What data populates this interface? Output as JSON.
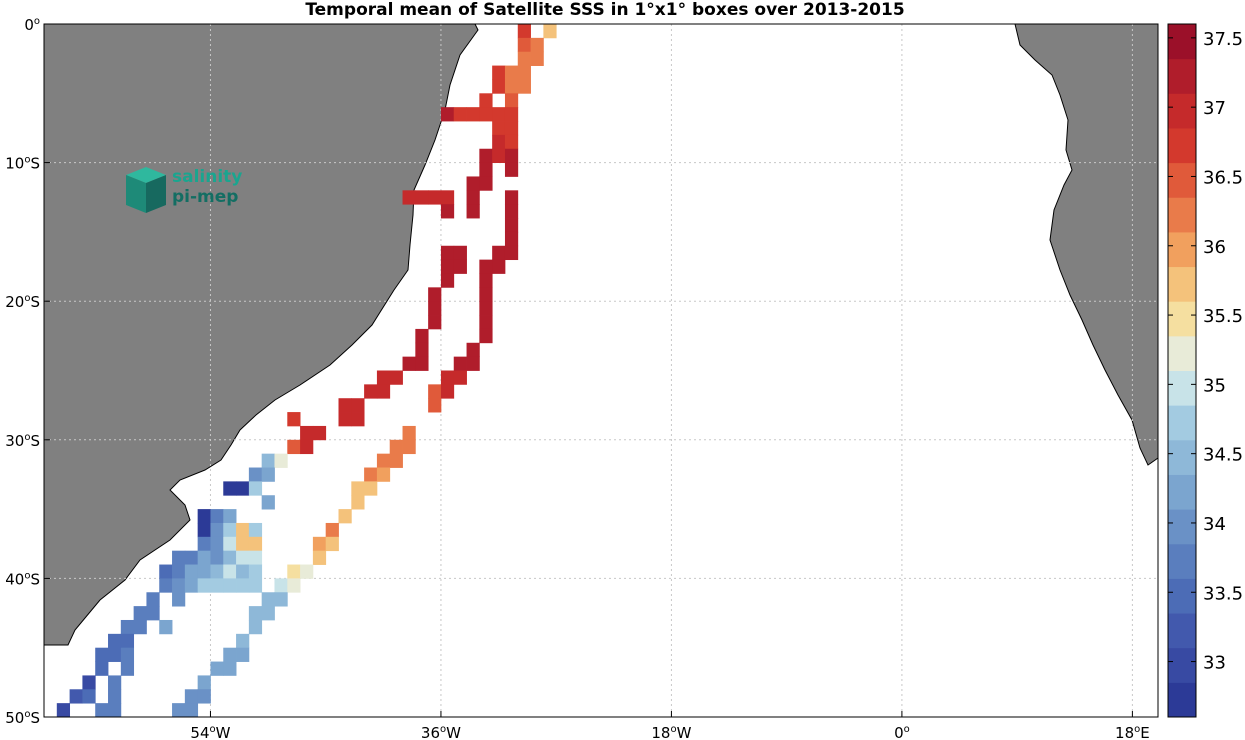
{
  "title": "Temporal mean of Satellite SSS in 1°x1° boxes over 2013-2015",
  "logo": {
    "line1": "salinity",
    "line2": "pi-mep"
  },
  "colors": {
    "land": "#808080",
    "ocean": "#ffffff",
    "grid": "#c8c8c8"
  },
  "colorbar": {
    "min": 32.6,
    "max": 37.6,
    "colors": [
      "#2c3a97",
      "#384aa3",
      "#4259ad",
      "#4c6cb6",
      "#5a7ebe",
      "#6a91c6",
      "#7ba5cf",
      "#8eb8d8",
      "#a3cbe1",
      "#c8e3e8",
      "#e8ebd8",
      "#f5dfa0",
      "#f4c27b",
      "#f1a05e",
      "#e97b4a",
      "#e05a3a",
      "#d3392d",
      "#c52a2b",
      "#b01d2b",
      "#9b1029"
    ],
    "ticks": [
      {
        "value": 33,
        "label": "33"
      },
      {
        "value": 33.5,
        "label": "33.5"
      },
      {
        "value": 34,
        "label": "34"
      },
      {
        "value": 34.5,
        "label": "34.5"
      },
      {
        "value": 35,
        "label": "35"
      },
      {
        "value": 35.5,
        "label": "35.5"
      },
      {
        "value": 36,
        "label": "36"
      },
      {
        "value": 36.5,
        "label": "36.5"
      },
      {
        "value": 37,
        "label": "37"
      },
      {
        "value": 37.5,
        "label": "37.5"
      }
    ]
  },
  "axes": {
    "lon_range": [
      -67,
      20
    ],
    "lat_range": [
      -50,
      0
    ],
    "lon_ticks": [
      {
        "value": -54,
        "label": "54",
        "sup": "o",
        "hemi": "W"
      },
      {
        "value": -36,
        "label": "36",
        "sup": "o",
        "hemi": "W"
      },
      {
        "value": -18,
        "label": "18",
        "sup": "o",
        "hemi": "W"
      },
      {
        "value": 0,
        "label": "0",
        "sup": "o",
        "hemi": ""
      },
      {
        "value": 18,
        "label": "18",
        "sup": "o",
        "hemi": "E"
      }
    ],
    "lat_ticks": [
      {
        "value": 0,
        "label": "0",
        "sup": "o",
        "hemi": ""
      },
      {
        "value": -10,
        "label": "10",
        "sup": "o",
        "hemi": "S"
      },
      {
        "value": -20,
        "label": "20",
        "sup": "o",
        "hemi": "S"
      },
      {
        "value": -30,
        "label": "30",
        "sup": "o",
        "hemi": "S"
      },
      {
        "value": -40,
        "label": "40",
        "sup": "o",
        "hemi": "S"
      },
      {
        "value": -50,
        "label": "50",
        "sup": "o",
        "hemi": "S"
      }
    ]
  },
  "chart_data": {
    "type": "heatmap",
    "title": "Temporal mean of Satellite SSS in 1°x1° boxes over 2013-2015",
    "colorbar_range": [
      32.6,
      37.6
    ],
    "xlim": [
      -67,
      20
    ],
    "ylim": [
      -50,
      0
    ],
    "cells": [
      {
        "lon": -29.5,
        "lat": -0.5,
        "v": 36.6
      },
      {
        "lon": -27.5,
        "lat": -0.5,
        "v": 35.8
      },
      {
        "lon": -29.5,
        "lat": -1.5,
        "v": 36.4
      },
      {
        "lon": -28.5,
        "lat": -1.5,
        "v": 36.1
      },
      {
        "lon": -29.5,
        "lat": -2.5,
        "v": 36.2
      },
      {
        "lon": -28.5,
        "lat": -2.5,
        "v": 36.1
      },
      {
        "lon": -31.5,
        "lat": -3.5,
        "v": 36.6
      },
      {
        "lon": -30.5,
        "lat": -3.5,
        "v": 36.2
      },
      {
        "lon": -29.5,
        "lat": -3.5,
        "v": 36.1
      },
      {
        "lon": -31.5,
        "lat": -4.5,
        "v": 36.7
      },
      {
        "lon": -30.5,
        "lat": -4.5,
        "v": 36.3
      },
      {
        "lon": -29.5,
        "lat": -4.5,
        "v": 36.2
      },
      {
        "lon": -32.5,
        "lat": -5.5,
        "v": 36.6
      },
      {
        "lon": -30.5,
        "lat": -5.5,
        "v": 36.5
      },
      {
        "lon": -35.5,
        "lat": -6.5,
        "v": 37.2
      },
      {
        "lon": -34.5,
        "lat": -6.5,
        "v": 36.8
      },
      {
        "lon": -33.5,
        "lat": -6.5,
        "v": 36.8
      },
      {
        "lon": -32.5,
        "lat": -6.5,
        "v": 36.7
      },
      {
        "lon": -31.5,
        "lat": -6.5,
        "v": 36.7
      },
      {
        "lon": -30.5,
        "lat": -6.5,
        "v": 36.7
      },
      {
        "lon": -31.5,
        "lat": -7.5,
        "v": 36.7
      },
      {
        "lon": -30.5,
        "lat": -7.5,
        "v": 36.7
      },
      {
        "lon": -31.5,
        "lat": -8.5,
        "v": 37.0
      },
      {
        "lon": -30.5,
        "lat": -8.5,
        "v": 36.8
      },
      {
        "lon": -32.5,
        "lat": -9.5,
        "v": 37.1
      },
      {
        "lon": -31.5,
        "lat": -9.5,
        "v": 37.0
      },
      {
        "lon": -30.5,
        "lat": -9.5,
        "v": 37.2
      },
      {
        "lon": -32.5,
        "lat": -10.5,
        "v": 37.2
      },
      {
        "lon": -30.5,
        "lat": -10.5,
        "v": 37.3
      },
      {
        "lon": -33.5,
        "lat": -11.5,
        "v": 37.1
      },
      {
        "lon": -32.5,
        "lat": -11.5,
        "v": 37.2
      },
      {
        "lon": -38.5,
        "lat": -12.5,
        "v": 37.0
      },
      {
        "lon": -37.5,
        "lat": -12.5,
        "v": 37.0
      },
      {
        "lon": -36.5,
        "lat": -12.5,
        "v": 37.0
      },
      {
        "lon": -35.5,
        "lat": -12.5,
        "v": 37.0
      },
      {
        "lon": -33.5,
        "lat": -12.5,
        "v": 37.2
      },
      {
        "lon": -30.5,
        "lat": -12.5,
        "v": 37.3
      },
      {
        "lon": -35.5,
        "lat": -13.5,
        "v": 37.1
      },
      {
        "lon": -33.5,
        "lat": -13.5,
        "v": 37.2
      },
      {
        "lon": -30.5,
        "lat": -13.5,
        "v": 37.3
      },
      {
        "lon": -30.5,
        "lat": -14.5,
        "v": 37.3
      },
      {
        "lon": -30.5,
        "lat": -15.5,
        "v": 37.3
      },
      {
        "lon": -35.5,
        "lat": -16.5,
        "v": 37.3
      },
      {
        "lon": -34.5,
        "lat": -16.5,
        "v": 37.3
      },
      {
        "lon": -31.5,
        "lat": -16.5,
        "v": 37.3
      },
      {
        "lon": -30.5,
        "lat": -16.5,
        "v": 37.3
      },
      {
        "lon": -35.5,
        "lat": -17.5,
        "v": 37.3
      },
      {
        "lon": -34.5,
        "lat": -17.5,
        "v": 37.3
      },
      {
        "lon": -32.5,
        "lat": -17.5,
        "v": 37.3
      },
      {
        "lon": -31.5,
        "lat": -17.5,
        "v": 37.3
      },
      {
        "lon": -35.5,
        "lat": -18.5,
        "v": 37.3
      },
      {
        "lon": -32.5,
        "lat": -18.5,
        "v": 37.3
      },
      {
        "lon": -36.5,
        "lat": -19.5,
        "v": 37.3
      },
      {
        "lon": -32.5,
        "lat": -19.5,
        "v": 37.3
      },
      {
        "lon": -36.5,
        "lat": -20.5,
        "v": 37.3
      },
      {
        "lon": -32.5,
        "lat": -20.5,
        "v": 37.3
      },
      {
        "lon": -36.5,
        "lat": -21.5,
        "v": 37.3
      },
      {
        "lon": -32.5,
        "lat": -21.5,
        "v": 37.3
      },
      {
        "lon": -37.5,
        "lat": -22.5,
        "v": 37.2
      },
      {
        "lon": -32.5,
        "lat": -22.5,
        "v": 37.2
      },
      {
        "lon": -37.5,
        "lat": -23.5,
        "v": 37.1
      },
      {
        "lon": -33.5,
        "lat": -23.5,
        "v": 37.2
      },
      {
        "lon": -38.5,
        "lat": -24.5,
        "v": 37.1
      },
      {
        "lon": -37.5,
        "lat": -24.5,
        "v": 37.1
      },
      {
        "lon": -34.5,
        "lat": -24.5,
        "v": 37.1
      },
      {
        "lon": -33.5,
        "lat": -24.5,
        "v": 37.1
      },
      {
        "lon": -40.5,
        "lat": -25.5,
        "v": 37.0
      },
      {
        "lon": -39.5,
        "lat": -25.5,
        "v": 37.0
      },
      {
        "lon": -35.5,
        "lat": -25.5,
        "v": 37.0
      },
      {
        "lon": -34.5,
        "lat": -25.5,
        "v": 37.0
      },
      {
        "lon": -41.5,
        "lat": -26.5,
        "v": 36.9
      },
      {
        "lon": -40.5,
        "lat": -26.5,
        "v": 36.9
      },
      {
        "lon": -36.5,
        "lat": -26.5,
        "v": 36.5
      },
      {
        "lon": -35.5,
        "lat": -26.5,
        "v": 36.9
      },
      {
        "lon": -36.5,
        "lat": -27.5,
        "v": 36.4
      },
      {
        "lon": -43.5,
        "lat": -27.5,
        "v": 36.9
      },
      {
        "lon": -42.5,
        "lat": -27.5,
        "v": 36.9
      },
      {
        "lon": -43.5,
        "lat": -28.5,
        "v": 36.9
      },
      {
        "lon": -42.5,
        "lat": -28.5,
        "v": 36.9
      },
      {
        "lon": -47.5,
        "lat": -28.5,
        "v": 36.6
      },
      {
        "lon": -46.5,
        "lat": -29.5,
        "v": 36.9
      },
      {
        "lon": -45.5,
        "lat": -29.5,
        "v": 36.9
      },
      {
        "lon": -38.5,
        "lat": -29.5,
        "v": 36.2
      },
      {
        "lon": -47.5,
        "lat": -30.5,
        "v": 36.4
      },
      {
        "lon": -46.5,
        "lat": -30.5,
        "v": 36.9
      },
      {
        "lon": -39.5,
        "lat": -30.5,
        "v": 36.3
      },
      {
        "lon": -38.5,
        "lat": -30.5,
        "v": 36.2
      },
      {
        "lon": -49.5,
        "lat": -31.5,
        "v": 34.4
      },
      {
        "lon": -48.5,
        "lat": -31.5,
        "v": 35.3
      },
      {
        "lon": -40.5,
        "lat": -31.5,
        "v": 36.2
      },
      {
        "lon": -39.5,
        "lat": -31.5,
        "v": 36.1
      },
      {
        "lon": -50.5,
        "lat": -32.5,
        "v": 34.0
      },
      {
        "lon": -49.5,
        "lat": -32.5,
        "v": 34.3
      },
      {
        "lon": -41.5,
        "lat": -32.5,
        "v": 36.1
      },
      {
        "lon": -40.5,
        "lat": -32.5,
        "v": 36.0
      },
      {
        "lon": -52.5,
        "lat": -33.5,
        "v": 32.8
      },
      {
        "lon": -51.5,
        "lat": -33.5,
        "v": 32.8
      },
      {
        "lon": -50.5,
        "lat": -33.5,
        "v": 34.7
      },
      {
        "lon": -42.5,
        "lat": -33.5,
        "v": 35.8
      },
      {
        "lon": -41.5,
        "lat": -33.5,
        "v": 35.7
      },
      {
        "lon": -49.5,
        "lat": -34.5,
        "v": 34.1
      },
      {
        "lon": -42.5,
        "lat": -34.5,
        "v": 35.8
      },
      {
        "lon": -54.5,
        "lat": -35.5,
        "v": 32.8
      },
      {
        "lon": -53.5,
        "lat": -35.5,
        "v": 33.6
      },
      {
        "lon": -52.5,
        "lat": -35.5,
        "v": 34.3
      },
      {
        "lon": -43.5,
        "lat": -35.5,
        "v": 35.8
      },
      {
        "lon": -54.5,
        "lat": -36.5,
        "v": 32.7
      },
      {
        "lon": -53.5,
        "lat": -36.5,
        "v": 34.0
      },
      {
        "lon": -52.5,
        "lat": -36.5,
        "v": 34.8
      },
      {
        "lon": -51.5,
        "lat": -36.5,
        "v": 35.6
      },
      {
        "lon": -50.5,
        "lat": -36.5,
        "v": 34.6
      },
      {
        "lon": -44.5,
        "lat": -36.5,
        "v": 36.3
      },
      {
        "lon": -54.5,
        "lat": -37.5,
        "v": 33.8
      },
      {
        "lon": -53.5,
        "lat": -37.5,
        "v": 33.9
      },
      {
        "lon": -52.5,
        "lat": -37.5,
        "v": 34.9
      },
      {
        "lon": -51.5,
        "lat": -37.5,
        "v": 35.6
      },
      {
        "lon": -50.5,
        "lat": -37.5,
        "v": 35.6
      },
      {
        "lon": -45.5,
        "lat": -37.5,
        "v": 35.9
      },
      {
        "lon": -44.5,
        "lat": -37.5,
        "v": 35.7
      },
      {
        "lon": -56.5,
        "lat": -38.5,
        "v": 33.6
      },
      {
        "lon": -55.5,
        "lat": -38.5,
        "v": 33.7
      },
      {
        "lon": -54.5,
        "lat": -38.5,
        "v": 34.3
      },
      {
        "lon": -53.5,
        "lat": -38.5,
        "v": 34.0
      },
      {
        "lon": -52.5,
        "lat": -38.5,
        "v": 34.4
      },
      {
        "lon": -51.5,
        "lat": -38.5,
        "v": 34.9
      },
      {
        "lon": -50.5,
        "lat": -38.5,
        "v": 35.0
      },
      {
        "lon": -45.5,
        "lat": -38.5,
        "v": 35.8
      },
      {
        "lon": -57.5,
        "lat": -39.5,
        "v": 33.5
      },
      {
        "lon": -56.5,
        "lat": -39.5,
        "v": 33.7
      },
      {
        "lon": -55.5,
        "lat": -39.5,
        "v": 34.2
      },
      {
        "lon": -54.5,
        "lat": -39.5,
        "v": 34.1
      },
      {
        "lon": -53.5,
        "lat": -39.5,
        "v": 34.5
      },
      {
        "lon": -52.5,
        "lat": -39.5,
        "v": 34.9
      },
      {
        "lon": -51.5,
        "lat": -39.5,
        "v": 34.5
      },
      {
        "lon": -50.5,
        "lat": -39.5,
        "v": 34.6
      },
      {
        "lon": -47.5,
        "lat": -39.5,
        "v": 35.4
      },
      {
        "lon": -46.5,
        "lat": -39.5,
        "v": 35.3
      },
      {
        "lon": -57.5,
        "lat": -40.5,
        "v": 33.6
      },
      {
        "lon": -56.5,
        "lat": -40.5,
        "v": 33.9
      },
      {
        "lon": -55.5,
        "lat": -40.5,
        "v": 34.1
      },
      {
        "lon": -54.5,
        "lat": -40.5,
        "v": 34.6
      },
      {
        "lon": -53.5,
        "lat": -40.5,
        "v": 34.8
      },
      {
        "lon": -52.5,
        "lat": -40.5,
        "v": 34.8
      },
      {
        "lon": -51.5,
        "lat": -40.5,
        "v": 34.8
      },
      {
        "lon": -50.5,
        "lat": -40.5,
        "v": 34.8
      },
      {
        "lon": -48.5,
        "lat": -40.5,
        "v": 34.9
      },
      {
        "lon": -47.5,
        "lat": -40.5,
        "v": 35.3
      },
      {
        "lon": -58.5,
        "lat": -41.5,
        "v": 33.6
      },
      {
        "lon": -56.5,
        "lat": -41.5,
        "v": 34.0
      },
      {
        "lon": -49.5,
        "lat": -41.5,
        "v": 34.4
      },
      {
        "lon": -48.5,
        "lat": -41.5,
        "v": 34.4
      },
      {
        "lon": -59.5,
        "lat": -42.5,
        "v": 33.6
      },
      {
        "lon": -58.5,
        "lat": -42.5,
        "v": 33.6
      },
      {
        "lon": -50.5,
        "lat": -42.5,
        "v": 34.4
      },
      {
        "lon": -49.5,
        "lat": -42.5,
        "v": 34.4
      },
      {
        "lon": -60.5,
        "lat": -43.5,
        "v": 33.6
      },
      {
        "lon": -59.5,
        "lat": -43.5,
        "v": 33.6
      },
      {
        "lon": -57.5,
        "lat": -43.5,
        "v": 34.1
      },
      {
        "lon": -50.5,
        "lat": -43.5,
        "v": 34.4
      },
      {
        "lon": -61.5,
        "lat": -44.5,
        "v": 33.5
      },
      {
        "lon": -60.5,
        "lat": -44.5,
        "v": 33.5
      },
      {
        "lon": -51.5,
        "lat": -44.5,
        "v": 34.4
      },
      {
        "lon": -62.5,
        "lat": -45.5,
        "v": 33.5
      },
      {
        "lon": -61.5,
        "lat": -45.5,
        "v": 33.5
      },
      {
        "lon": -60.5,
        "lat": -45.5,
        "v": 33.8
      },
      {
        "lon": -52.5,
        "lat": -45.5,
        "v": 34.3
      },
      {
        "lon": -51.5,
        "lat": -45.5,
        "v": 34.3
      },
      {
        "lon": -62.5,
        "lat": -46.5,
        "v": 33.5
      },
      {
        "lon": -60.5,
        "lat": -46.5,
        "v": 33.8
      },
      {
        "lon": -53.5,
        "lat": -46.5,
        "v": 34.3
      },
      {
        "lon": -52.5,
        "lat": -46.5,
        "v": 34.3
      },
      {
        "lon": -63.5,
        "lat": -47.5,
        "v": 32.9
      },
      {
        "lon": -61.5,
        "lat": -47.5,
        "v": 33.7
      },
      {
        "lon": -54.5,
        "lat": -47.5,
        "v": 34.1
      },
      {
        "lon": -64.5,
        "lat": -48.5,
        "v": 33.1
      },
      {
        "lon": -63.5,
        "lat": -48.5,
        "v": 33.4
      },
      {
        "lon": -61.5,
        "lat": -48.5,
        "v": 33.8
      },
      {
        "lon": -55.5,
        "lat": -48.5,
        "v": 34.0
      },
      {
        "lon": -54.5,
        "lat": -48.5,
        "v": 34.0
      },
      {
        "lon": -65.5,
        "lat": -49.5,
        "v": 33.0
      },
      {
        "lon": -62.5,
        "lat": -49.5,
        "v": 33.8
      },
      {
        "lon": -61.5,
        "lat": -49.5,
        "v": 33.6
      },
      {
        "lon": -56.5,
        "lat": -49.5,
        "v": 33.9
      },
      {
        "lon": -55.5,
        "lat": -49.5,
        "v": 34.0
      }
    ]
  }
}
